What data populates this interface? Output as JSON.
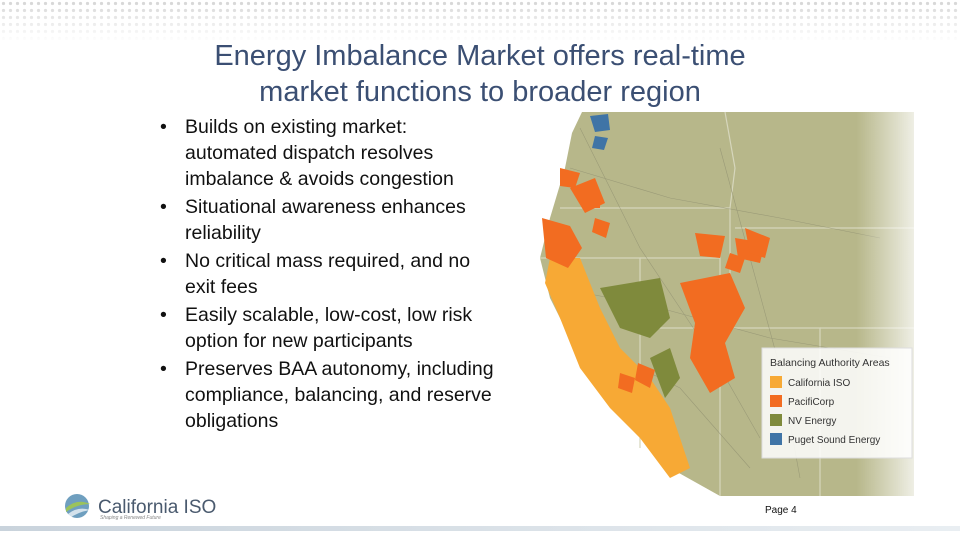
{
  "header": {
    "title": [
      "Energy Imbalance Market offers real-time",
      "market functions to broader region"
    ]
  },
  "bullets": [
    "Builds on existing market: automated dispatch resolves imbalance & avoids congestion",
    "Situational awareness enhances reliability",
    "No critical mass required, and no exit fees",
    "Easily scalable, low-cost, low risk option for new participants",
    "Preserves BAA autonomy, including compliance, balancing, and reserve obligations"
  ],
  "legend": {
    "title": "Balancing Authority Areas",
    "items": [
      {
        "name": "California ISO",
        "color": "#f7a935"
      },
      {
        "name": "PacifiCorp",
        "color": "#f26c21"
      },
      {
        "name": "NV Energy",
        "color": "#7f8a3c"
      },
      {
        "name": "Puget Sound Energy",
        "color": "#3f74a6"
      }
    ]
  },
  "footer": {
    "logo": "California ISO",
    "tagline": "Shaping a Renewed Future",
    "page": "Page 4"
  }
}
